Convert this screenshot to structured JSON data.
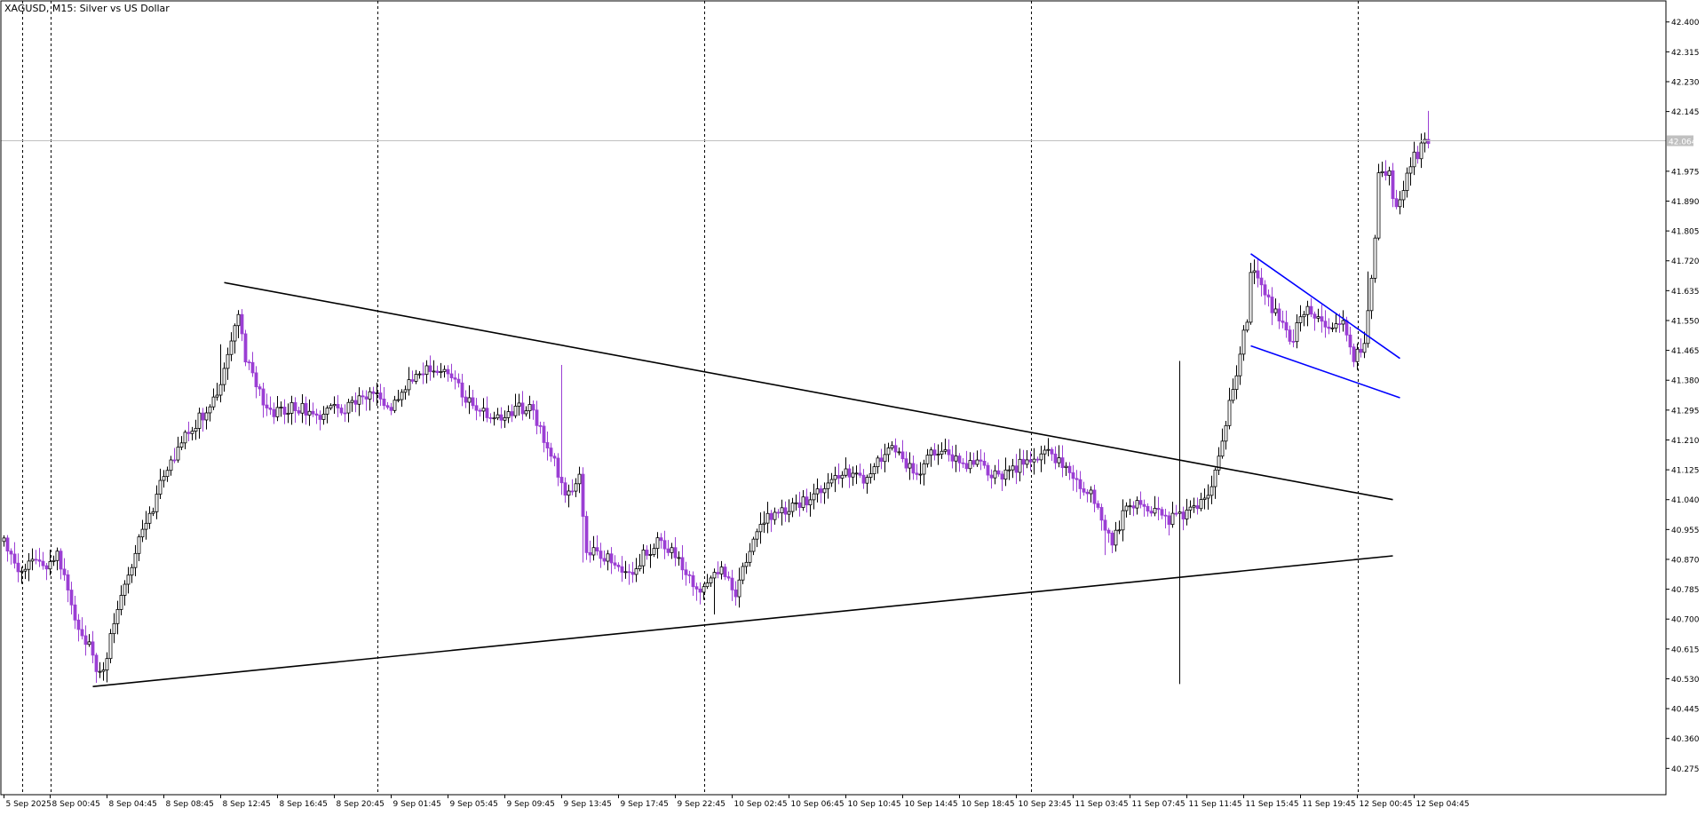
{
  "header": {
    "symbol_line": "XAGUSD, M15:  Silver vs US Dollar"
  },
  "colors": {
    "background": "#ffffff",
    "frame": "#000000",
    "grid_vertical": "#000000",
    "candle_bull_body": "#ffffff",
    "candle_bear_body": "#9b3fd4",
    "candle_outline": "#000000",
    "wick_bull": "#000000",
    "wick_bear": "#9b3fd4",
    "trendline_main": "#000000",
    "trendline_flag": "#0000ff",
    "price_line": "#c0c0c0",
    "price_label_bg": "#c0c0c0",
    "price_label_text": "#ffffff"
  },
  "chart_data": {
    "type": "candlestick",
    "title": "XAGUSD, M15:  Silver vs US Dollar",
    "timeframe": "M15",
    "ylim": [
      40.2,
      42.46
    ],
    "grid": "vertical-dotted",
    "current_price": "42.064",
    "current_price_value": 42.064,
    "y_ticks": [
      "42.400",
      "42.315",
      "42.230",
      "42.145",
      "41.975",
      "41.890",
      "41.805",
      "41.720",
      "41.635",
      "41.550",
      "41.465",
      "41.380",
      "41.295",
      "41.210",
      "41.125",
      "41.040",
      "40.955",
      "40.870",
      "40.785",
      "40.700",
      "40.615",
      "40.530",
      "40.445",
      "40.360",
      "40.275"
    ],
    "x_ticks": [
      {
        "label": "5 Sep 2025",
        "bar": 0
      },
      {
        "label": "8 Sep 00:45",
        "bar": 13
      },
      {
        "label": "8 Sep 04:45",
        "bar": 29
      },
      {
        "label": "8 Sep 08:45",
        "bar": 45
      },
      {
        "label": "8 Sep 12:45",
        "bar": 61
      },
      {
        "label": "8 Sep 16:45",
        "bar": 77
      },
      {
        "label": "8 Sep 20:45",
        "bar": 93
      },
      {
        "label": "9 Sep 01:45",
        "bar": 109
      },
      {
        "label": "9 Sep 05:45",
        "bar": 125
      },
      {
        "label": "9 Sep 09:45",
        "bar": 141
      },
      {
        "label": "9 Sep 13:45",
        "bar": 157
      },
      {
        "label": "9 Sep 17:45",
        "bar": 173
      },
      {
        "label": "9 Sep 22:45",
        "bar": 189
      },
      {
        "label": "10 Sep 02:45",
        "bar": 205
      },
      {
        "label": "10 Sep 06:45",
        "bar": 221
      },
      {
        "label": "10 Sep 10:45",
        "bar": 237
      },
      {
        "label": "10 Sep 14:45",
        "bar": 253
      },
      {
        "label": "10 Sep 18:45",
        "bar": 269
      },
      {
        "label": "10 Sep 23:45",
        "bar": 285
      },
      {
        "label": "11 Sep 03:45",
        "bar": 301
      },
      {
        "label": "11 Sep 07:45",
        "bar": 317
      },
      {
        "label": "11 Sep 11:45",
        "bar": 333
      },
      {
        "label": "11 Sep 15:45",
        "bar": 349
      },
      {
        "label": "11 Sep 19:45",
        "bar": 365
      },
      {
        "label": "12 Sep 00:45",
        "bar": 381
      },
      {
        "label": "12 Sep 04:45",
        "bar": 397
      }
    ],
    "day_separators": [
      5,
      13,
      105,
      197,
      289,
      381
    ],
    "bar_count": 402,
    "anchors": [
      [
        0,
        40.93
      ],
      [
        4,
        40.82
      ],
      [
        7,
        40.86
      ],
      [
        12,
        40.84
      ],
      [
        15,
        40.88
      ],
      [
        18,
        40.8
      ],
      [
        21,
        40.66
      ],
      [
        24,
        40.62
      ],
      [
        26,
        40.56
      ],
      [
        28,
        40.54
      ],
      [
        30,
        40.66
      ],
      [
        34,
        40.8
      ],
      [
        38,
        40.92
      ],
      [
        42,
        41.02
      ],
      [
        46,
        41.14
      ],
      [
        50,
        41.2
      ],
      [
        54,
        41.26
      ],
      [
        58,
        41.3
      ],
      [
        62,
        41.4
      ],
      [
        64,
        41.5
      ],
      [
        66,
        41.58
      ],
      [
        68,
        41.44
      ],
      [
        72,
        41.34
      ],
      [
        76,
        41.28
      ],
      [
        80,
        41.3
      ],
      [
        84,
        41.3
      ],
      [
        88,
        41.28
      ],
      [
        92,
        41.3
      ],
      [
        96,
        41.3
      ],
      [
        100,
        41.32
      ],
      [
        104,
        41.34
      ],
      [
        108,
        41.3
      ],
      [
        112,
        41.34
      ],
      [
        116,
        41.4
      ],
      [
        120,
        41.42
      ],
      [
        124,
        41.4
      ],
      [
        128,
        41.36
      ],
      [
        132,
        41.3
      ],
      [
        136,
        41.28
      ],
      [
        140,
        41.26
      ],
      [
        144,
        41.3
      ],
      [
        148,
        41.3
      ],
      [
        152,
        41.22
      ],
      [
        156,
        41.12
      ],
      [
        158,
        41.04
      ],
      [
        160,
        41.08
      ],
      [
        162,
        41.1
      ],
      [
        164,
        40.9
      ],
      [
        168,
        40.88
      ],
      [
        172,
        40.86
      ],
      [
        176,
        40.82
      ],
      [
        180,
        40.88
      ],
      [
        184,
        40.92
      ],
      [
        188,
        40.9
      ],
      [
        192,
        40.84
      ],
      [
        196,
        40.76
      ],
      [
        198,
        40.8
      ],
      [
        202,
        40.84
      ],
      [
        206,
        40.78
      ],
      [
        210,
        40.9
      ],
      [
        214,
        40.98
      ],
      [
        218,
        41.0
      ],
      [
        222,
        41.02
      ],
      [
        226,
        41.04
      ],
      [
        230,
        41.06
      ],
      [
        234,
        41.1
      ],
      [
        238,
        41.12
      ],
      [
        242,
        41.1
      ],
      [
        246,
        41.16
      ],
      [
        250,
        41.18
      ],
      [
        254,
        41.14
      ],
      [
        258,
        41.12
      ],
      [
        262,
        41.18
      ],
      [
        266,
        41.16
      ],
      [
        270,
        41.14
      ],
      [
        274,
        41.16
      ],
      [
        278,
        41.1
      ],
      [
        282,
        41.12
      ],
      [
        286,
        41.14
      ],
      [
        290,
        41.16
      ],
      [
        294,
        41.18
      ],
      [
        298,
        41.14
      ],
      [
        302,
        41.08
      ],
      [
        306,
        41.06
      ],
      [
        310,
        40.96
      ],
      [
        312,
        40.92
      ],
      [
        316,
        41.02
      ],
      [
        320,
        41.04
      ],
      [
        324,
        41.0
      ],
      [
        328,
        40.98
      ],
      [
        332,
        41.0
      ],
      [
        336,
        41.02
      ],
      [
        340,
        41.06
      ],
      [
        342,
        41.18
      ],
      [
        344,
        41.26
      ],
      [
        346,
        41.36
      ],
      [
        348,
        41.46
      ],
      [
        350,
        41.56
      ],
      [
        351,
        41.7
      ],
      [
        353,
        41.66
      ],
      [
        356,
        41.6
      ],
      [
        359,
        41.56
      ],
      [
        362,
        41.48
      ],
      [
        365,
        41.56
      ],
      [
        368,
        41.58
      ],
      [
        371,
        41.54
      ],
      [
        374,
        41.52
      ],
      [
        377,
        41.54
      ],
      [
        380,
        41.44
      ],
      [
        383,
        41.48
      ],
      [
        385,
        41.66
      ],
      [
        386,
        41.8
      ],
      [
        387,
        41.96
      ],
      [
        388,
        41.98
      ],
      [
        390,
        41.96
      ],
      [
        392,
        41.86
      ],
      [
        394,
        41.92
      ],
      [
        396,
        42.0
      ],
      [
        399,
        42.04
      ],
      [
        401,
        42.07
      ]
    ],
    "trendlines": [
      {
        "name": "upper-triangle-line",
        "color": "black",
        "points": [
          [
            62,
            41.658
          ],
          [
            391,
            41.04
          ]
        ]
      },
      {
        "name": "lower-triangle-line",
        "color": "black",
        "points": [
          [
            25,
            40.508
          ],
          [
            391,
            40.88
          ]
        ]
      },
      {
        "name": "flag-upper-line",
        "color": "blue",
        "points": [
          [
            351,
            41.74
          ],
          [
            393,
            41.442
          ]
        ]
      },
      {
        "name": "flag-lower-line",
        "color": "blue",
        "points": [
          [
            351,
            41.478
          ],
          [
            393,
            41.33
          ]
        ]
      }
    ]
  }
}
